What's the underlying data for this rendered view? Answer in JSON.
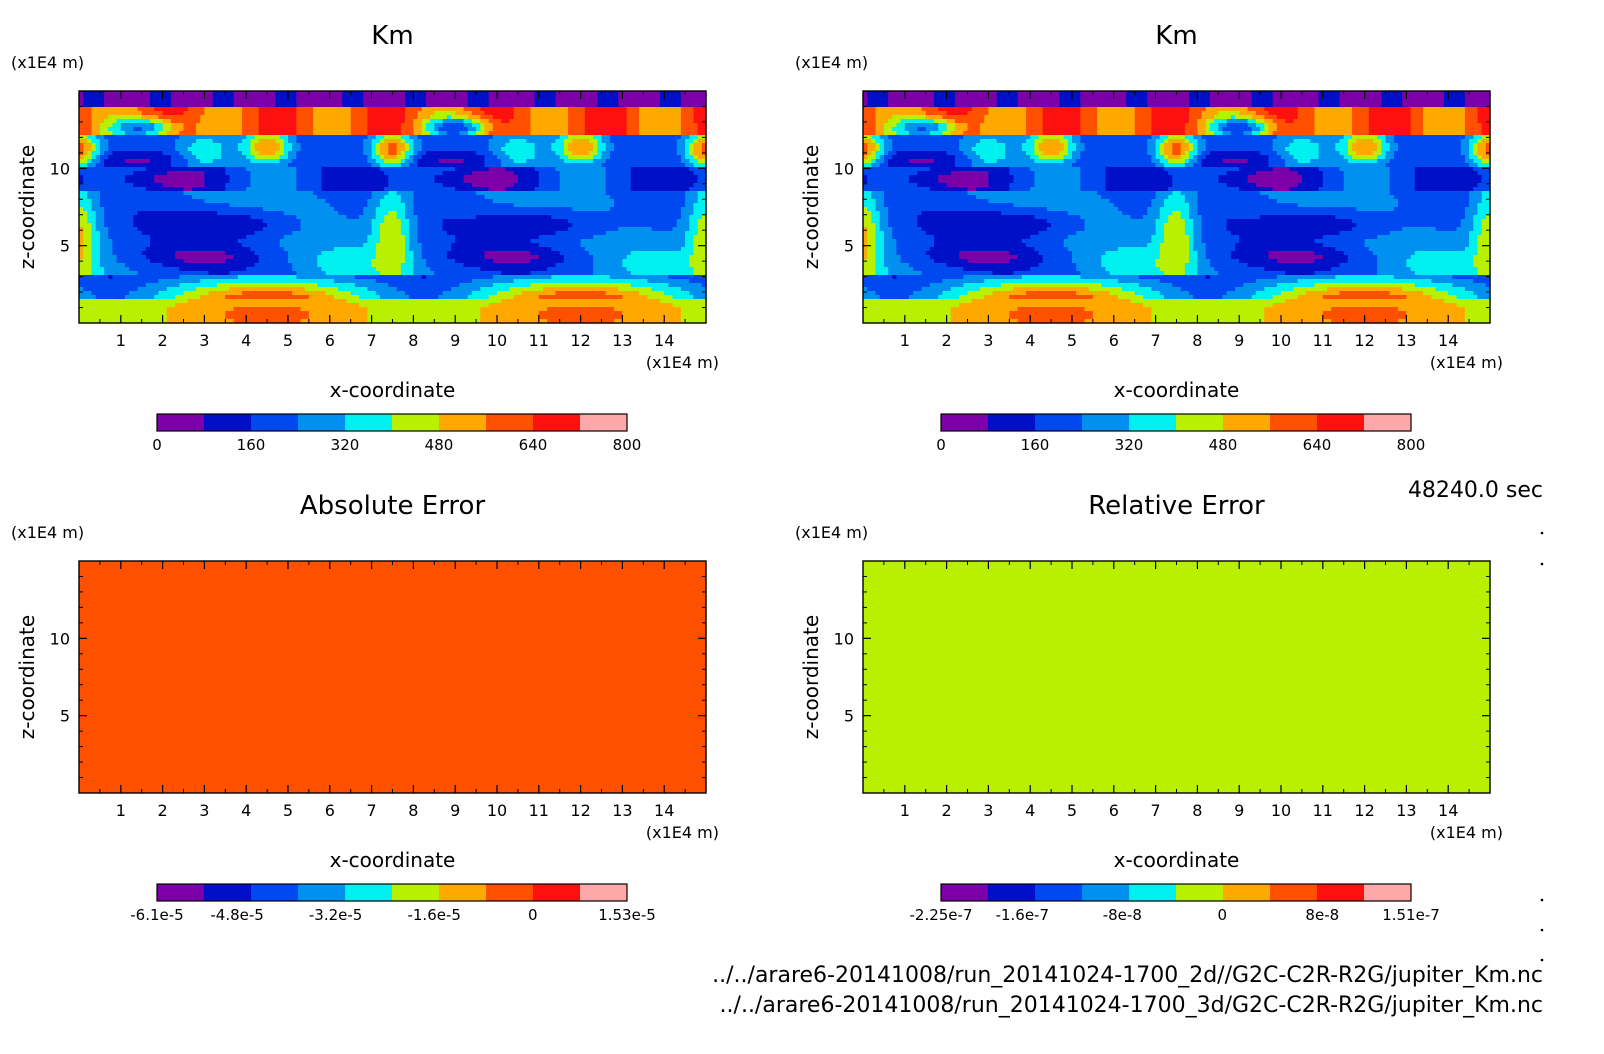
{
  "footer": {
    "time_label": "48240.0 sec",
    "paths": [
      "../../arare6-20141008/run_20141024-1700_2d//G2C-C2R-R2G/jupiter_Km.nc",
      "../../arare6-20141008/run_20141024-1700_3d/G2C-C2R-R2G/jupiter_Km.nc"
    ]
  },
  "colors": {
    "palette": [
      "#7b00a8",
      "#0010c8",
      "#0048f0",
      "#0090f0",
      "#00f0f0",
      "#b8f000",
      "#ffa800",
      "#ff5000",
      "#ff1010",
      "#ffa8a8"
    ],
    "absolute_error_fill": "#ff1818",
    "relative_error_fill": "#ffab00"
  },
  "chart_data": [
    {
      "type": "heatmap",
      "title": "Km",
      "xlabel": "x-coordinate",
      "ylabel": "z-coordinate",
      "x_unit": "(x1E4 m)",
      "y_unit": "(x1E4 m)",
      "xlim": [
        0,
        15
      ],
      "ylim": [
        0,
        15
      ],
      "x_ticks": [
        "1",
        "2",
        "3",
        "4",
        "5",
        "6",
        "7",
        "8",
        "9",
        "10",
        "11",
        "12",
        "13",
        "14"
      ],
      "y_ticks": [
        "5",
        "10"
      ],
      "colorbar": {
        "min": 0,
        "max": 800,
        "levels": 10,
        "labels": [
          "0",
          "160",
          "320",
          "480",
          "640",
          "800"
        ]
      },
      "field": "km"
    },
    {
      "type": "heatmap",
      "title": "Km",
      "xlabel": "x-coordinate",
      "ylabel": "z-coordinate",
      "x_unit": "(x1E4 m)",
      "y_unit": "(x1E4 m)",
      "xlim": [
        0,
        15
      ],
      "ylim": [
        0,
        15
      ],
      "x_ticks": [
        "1",
        "2",
        "3",
        "4",
        "5",
        "6",
        "7",
        "8",
        "9",
        "10",
        "11",
        "12",
        "13",
        "14"
      ],
      "y_ticks": [
        "5",
        "10"
      ],
      "colorbar": {
        "min": 0,
        "max": 800,
        "levels": 10,
        "labels": [
          "0",
          "160",
          "320",
          "480",
          "640",
          "800"
        ]
      },
      "field": "km"
    },
    {
      "type": "heatmap",
      "title": "Absolute Error",
      "xlabel": "x-coordinate",
      "ylabel": "z-coordinate",
      "x_unit": "(x1E4 m)",
      "y_unit": "(x1E4 m)",
      "xlim": [
        0,
        15
      ],
      "ylim": [
        0,
        15
      ],
      "x_ticks": [
        "1",
        "2",
        "3",
        "4",
        "5",
        "6",
        "7",
        "8",
        "9",
        "10",
        "11",
        "12",
        "13",
        "14"
      ],
      "y_ticks": [
        "5",
        "10"
      ],
      "colorbar": {
        "min": -6.1e-05,
        "max": 1.53e-05,
        "levels": 10,
        "labels": [
          "-6.1e-5",
          "-4.8e-5",
          "-3.2e-5",
          "-1.6e-5",
          "0",
          "1.53e-5"
        ]
      },
      "field": "uniform",
      "uniform_value": 0
    },
    {
      "type": "heatmap",
      "title": "Relative Error",
      "xlabel": "x-coordinate",
      "ylabel": "z-coordinate",
      "x_unit": "(x1E4 m)",
      "y_unit": "(x1E4 m)",
      "xlim": [
        0,
        15
      ],
      "ylim": [
        0,
        15
      ],
      "x_ticks": [
        "1",
        "2",
        "3",
        "4",
        "5",
        "6",
        "7",
        "8",
        "9",
        "10",
        "11",
        "12",
        "13",
        "14"
      ],
      "y_ticks": [
        "5",
        "10"
      ],
      "colorbar": {
        "min": -2.25e-07,
        "max": 1.51e-07,
        "levels": 10,
        "labels": [
          "-2.25e-7",
          "-1.6e-7",
          "-8e-8",
          "0",
          "8e-8",
          "1.51e-7"
        ]
      },
      "field": "uniform",
      "uniform_value": 0
    }
  ]
}
